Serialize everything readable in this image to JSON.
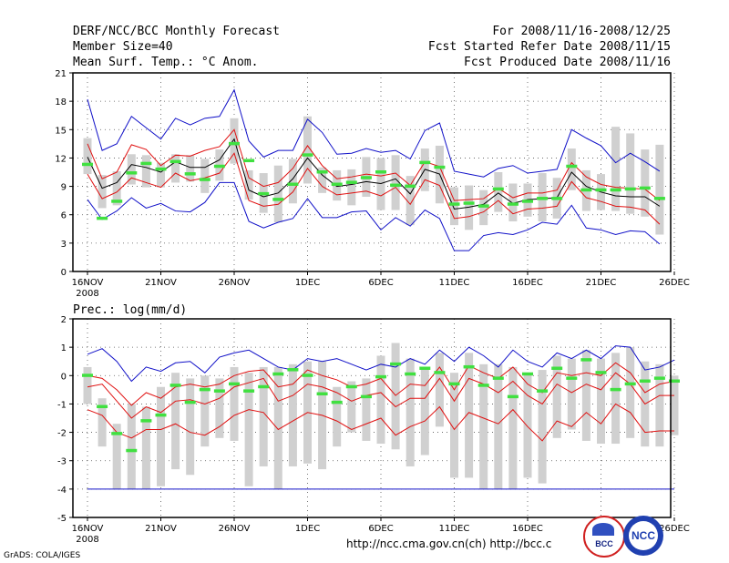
{
  "header": {
    "title": "DERF/NCC/BCC Monthly Forecast",
    "member_size": "Member Size=40",
    "variable": "Mean Surf. Temp.: °C Anom.",
    "period": "For 2008/11/16-2008/12/25",
    "refer_date": "Fcst Started Refer Date 2008/11/15",
    "produced_date": "Fcst Produced Date 2008/11/16"
  },
  "footer": {
    "url": "http://ncc.cma.gov.cn(ch)    http://bcc.c",
    "grads": "GrADS: COLA/IGES",
    "logo1_label": "BCC",
    "logo2_label": "NCC"
  },
  "colors": {
    "max": "#1010c8",
    "pct": "#e01010",
    "mean": "#000000",
    "box": "#d0d0d0",
    "obs": "#40e040"
  },
  "chart_data": [
    {
      "type": "line",
      "title": "Mean Surf. Temp.: °C Anom.",
      "ylim": [
        0,
        21
      ],
      "yticks": [
        0,
        3,
        6,
        9,
        12,
        15,
        18,
        21
      ],
      "xticks": [
        "16NOV",
        "21NOV",
        "26NOV",
        "1DEC",
        "6DEC",
        "11DEC",
        "16DEC",
        "21DEC",
        "26DEC"
      ],
      "xyear": "2008",
      "series": [
        {
          "name": "max",
          "values": [
            18.2,
            12.8,
            13.5,
            16.4,
            15.2,
            14.0,
            16.2,
            15.5,
            16.2,
            16.4,
            19.2,
            13.8,
            12.1,
            12.8,
            12.8,
            16.1,
            14.7,
            12.4,
            12.5,
            13.0,
            12.6,
            12.8,
            11.9,
            14.9,
            15.7,
            10.6,
            10.3,
            10.0,
            10.9,
            11.2,
            10.4,
            10.6,
            10.8,
            15.0,
            14.1,
            13.3,
            11.5,
            12.5,
            11.6,
            10.6
          ]
        },
        {
          "name": "p90",
          "values": [
            13.5,
            9.8,
            10.5,
            13.4,
            12.9,
            11.2,
            12.3,
            12.2,
            12.8,
            13.2,
            15.0,
            9.9,
            9.0,
            9.4,
            10.9,
            13.3,
            11.2,
            9.8,
            10.0,
            10.3,
            10.1,
            10.4,
            9.1,
            11.6,
            11.1,
            7.5,
            7.6,
            7.7,
            8.8,
            7.8,
            8.3,
            8.3,
            8.6,
            11.5,
            10.0,
            9.2,
            8.9,
            8.8,
            8.7,
            7.5
          ]
        },
        {
          "name": "mean",
          "values": [
            12.1,
            8.8,
            9.4,
            11.3,
            11.0,
            10.5,
            11.6,
            11.0,
            11.0,
            11.8,
            14.0,
            8.6,
            7.9,
            8.3,
            9.8,
            12.0,
            10.2,
            9.0,
            9.2,
            9.5,
            9.3,
            9.8,
            8.2,
            10.8,
            10.3,
            6.6,
            6.8,
            7.1,
            8.3,
            7.2,
            7.6,
            7.7,
            7.8,
            10.5,
            9.0,
            8.4,
            8.0,
            7.9,
            7.9,
            6.9
          ]
        },
        {
          "name": "p10",
          "values": [
            10.3,
            7.7,
            8.4,
            9.9,
            9.4,
            8.9,
            10.4,
            9.6,
            9.9,
            10.4,
            12.5,
            7.5,
            6.9,
            7.1,
            8.4,
            10.9,
            9.0,
            8.1,
            8.3,
            8.5,
            8.0,
            8.9,
            7.1,
            9.7,
            9.1,
            5.6,
            5.8,
            6.3,
            7.5,
            6.1,
            6.6,
            6.7,
            6.9,
            9.5,
            7.8,
            7.4,
            6.9,
            6.8,
            6.5,
            5.0
          ]
        },
        {
          "name": "min",
          "values": [
            7.6,
            5.5,
            6.4,
            7.8,
            6.7,
            7.2,
            6.4,
            6.3,
            7.3,
            9.4,
            9.4,
            5.3,
            4.6,
            5.2,
            5.6,
            7.7,
            5.7,
            5.7,
            6.3,
            6.4,
            4.4,
            5.7,
            4.8,
            6.5,
            5.6,
            2.2,
            2.2,
            3.8,
            4.1,
            3.9,
            4.4,
            5.2,
            5.0,
            7.0,
            4.6,
            4.4,
            3.9,
            4.3,
            4.2,
            2.9
          ]
        },
        {
          "name": "obs",
          "values": [
            11.3,
            5.6,
            7.4,
            10.4,
            11.4,
            10.8,
            11.6,
            10.3,
            9.7,
            11.1,
            13.5,
            11.7,
            8.2,
            7.6,
            9.2,
            12.3,
            10.5,
            9.2,
            9.4,
            9.9,
            10.5,
            9.1,
            9.0,
            11.5,
            11.0,
            7.1,
            7.2,
            6.9,
            8.7,
            7.1,
            7.4,
            7.7,
            7.7,
            11.1,
            8.6,
            8.6,
            8.6,
            8.7,
            8.8,
            7.7
          ]
        },
        {
          "name": "box_low",
          "values": [
            10.3,
            6.7,
            7.0,
            9.2,
            8.9,
            8.9,
            9.4,
            9.5,
            8.3,
            9.6,
            11.4,
            7.6,
            6.2,
            5.2,
            7.2,
            9.3,
            8.3,
            7.5,
            7.0,
            7.9,
            6.5,
            6.5,
            4.9,
            8.5,
            7.2,
            4.9,
            4.4,
            4.9,
            6.3,
            5.3,
            5.8,
            5.3,
            5.6,
            8.6,
            6.4,
            6.5,
            6.4,
            6.1,
            5.8,
            3.9
          ]
        },
        {
          "name": "box_high",
          "values": [
            14.1,
            10.2,
            10.6,
            12.4,
            12.3,
            11.5,
            12.4,
            12.3,
            11.9,
            12.9,
            16.2,
            10.7,
            10.4,
            11.2,
            11.9,
            16.4,
            11.0,
            10.7,
            10.8,
            12.1,
            12.0,
            12.3,
            10.1,
            13.0,
            13.3,
            8.9,
            9.1,
            8.6,
            10.5,
            9.3,
            9.3,
            10.4,
            9.9,
            13.0,
            10.7,
            10.3,
            15.3,
            14.6,
            12.9,
            13.4
          ]
        }
      ]
    },
    {
      "type": "line",
      "title": "Prec.: log(mm/d)",
      "ylim": [
        -5,
        2
      ],
      "yticks": [
        -5,
        -4,
        -3,
        -2,
        -1,
        0,
        1,
        2
      ],
      "xticks": [
        "16NOV",
        "21NOV",
        "26NOV",
        "1DEC",
        "6DEC",
        "11DEC",
        "16DEC",
        "21DEC",
        "26DEC"
      ],
      "xyear": "2008",
      "series": [
        {
          "name": "max",
          "values": [
            0.75,
            0.95,
            0.5,
            -0.2,
            0.3,
            0.15,
            0.45,
            0.5,
            0.1,
            0.65,
            0.8,
            0.9,
            0.6,
            0.3,
            0.2,
            0.6,
            0.5,
            0.6,
            0.4,
            0.2,
            0.4,
            0.3,
            0.6,
            0.4,
            0.9,
            0.5,
            1.0,
            0.7,
            0.3,
            0.9,
            0.5,
            0.3,
            0.8,
            0.6,
            0.9,
            0.6,
            1.05,
            1.0,
            0.2,
            0.3,
            0.55
          ]
        },
        {
          "name": "p90",
          "values": [
            0.0,
            -0.1,
            -0.5,
            -1.05,
            -0.6,
            -0.8,
            -0.4,
            -0.3,
            -0.4,
            -0.3,
            0.0,
            0.15,
            0.2,
            -0.4,
            -0.3,
            0.2,
            0.0,
            -0.15,
            -0.4,
            -0.3,
            -0.1,
            -0.7,
            -0.3,
            -0.35,
            0.3,
            -0.5,
            0.35,
            0.1,
            -0.1,
            0.3,
            -0.3,
            -0.6,
            0.1,
            0.0,
            0.1,
            0.0,
            0.45,
            0.1,
            -0.6,
            -0.3,
            -0.2
          ]
        },
        {
          "name": "p10",
          "values": [
            -0.4,
            -0.3,
            -0.9,
            -1.5,
            -1.1,
            -1.3,
            -0.9,
            -0.85,
            -1.0,
            -0.8,
            -0.4,
            -0.25,
            -0.1,
            -0.9,
            -0.7,
            -0.3,
            -0.4,
            -0.6,
            -0.9,
            -0.7,
            -0.6,
            -1.1,
            -0.8,
            -0.8,
            -0.1,
            -0.9,
            -0.1,
            -0.3,
            -0.6,
            -0.2,
            -0.7,
            -1.0,
            -0.3,
            -0.6,
            -0.3,
            -0.5,
            0.1,
            -0.3,
            -1.0,
            -0.7,
            -0.7
          ]
        },
        {
          "name": "p10b",
          "values": [
            -1.2,
            -1.4,
            -2.0,
            -2.2,
            -1.9,
            -1.9,
            -1.7,
            -2.0,
            -2.1,
            -1.8,
            -1.4,
            -1.2,
            -1.3,
            -1.9,
            -1.6,
            -1.3,
            -1.4,
            -1.6,
            -1.9,
            -1.7,
            -1.5,
            -2.1,
            -1.8,
            -1.6,
            -1.1,
            -1.9,
            -1.3,
            -1.5,
            -1.7,
            -1.2,
            -1.8,
            -2.3,
            -1.6,
            -1.8,
            -1.3,
            -1.7,
            -1.0,
            -1.3,
            -2.0,
            -1.95,
            -1.95
          ]
        },
        {
          "name": "min",
          "values": [
            -4,
            -4,
            -4,
            -4,
            -4,
            -4,
            -4,
            -4,
            -4,
            -4,
            -4,
            -4,
            -4,
            -4,
            -4,
            -4,
            -4,
            -4,
            -4,
            -4,
            -4,
            -4,
            -4,
            -4,
            -4,
            -4,
            -4,
            -4,
            -4,
            -4,
            -4,
            -4,
            -4,
            -4,
            -4,
            -4,
            -4,
            -4,
            -4,
            -4,
            -4
          ]
        },
        {
          "name": "obs",
          "values": [
            0.0,
            -1.1,
            -2.05,
            -2.65,
            -1.6,
            -1.4,
            -0.35,
            -0.95,
            -0.5,
            -0.55,
            -0.3,
            -0.55,
            -0.4,
            0.05,
            0.2,
            0.0,
            -0.65,
            -0.95,
            -0.4,
            -0.75,
            -0.05,
            0.4,
            0.05,
            0.25,
            0.1,
            -0.3,
            0.3,
            -0.35,
            -0.1,
            -0.75,
            0.05,
            -0.55,
            0.25,
            -0.1,
            0.55,
            0.1,
            -0.5,
            -0.3,
            -0.2,
            -0.1,
            -0.2
          ]
        },
        {
          "name": "box_low",
          "values": [
            -1,
            -2.5,
            -4,
            -4,
            -4,
            -3.9,
            -3.3,
            -3.5,
            -2.5,
            -2.2,
            -2.3,
            -3.9,
            -3.2,
            -4,
            -3.2,
            -3.1,
            -3.3,
            -2.5,
            -2.0,
            -2.3,
            -2.4,
            -2.6,
            -3.2,
            -2.8,
            -1.8,
            -3.6,
            -3.6,
            -4,
            -4,
            -4,
            -3.6,
            -3.8,
            -2.2,
            -1.9,
            -2.3,
            -2.4,
            -2.4,
            -2.2,
            -2.5,
            -2.5,
            -2.1
          ]
        },
        {
          "name": "box_high",
          "values": [
            0.3,
            -0.8,
            -1.7,
            -1.0,
            -1.1,
            -0.4,
            0.1,
            -0.1,
            0.0,
            -0.1,
            0.3,
            0.1,
            0.3,
            0.3,
            0.4,
            0.5,
            0.5,
            -0.4,
            -0.2,
            -0.1,
            0.7,
            1.15,
            0.6,
            0.3,
            0.8,
            0.1,
            0.8,
            0.4,
            0.4,
            0.3,
            0.1,
            0.2,
            0.7,
            0.6,
            0.9,
            0.6,
            0.8,
            1.0,
            0.5,
            0.4,
            0.0
          ]
        }
      ]
    }
  ]
}
